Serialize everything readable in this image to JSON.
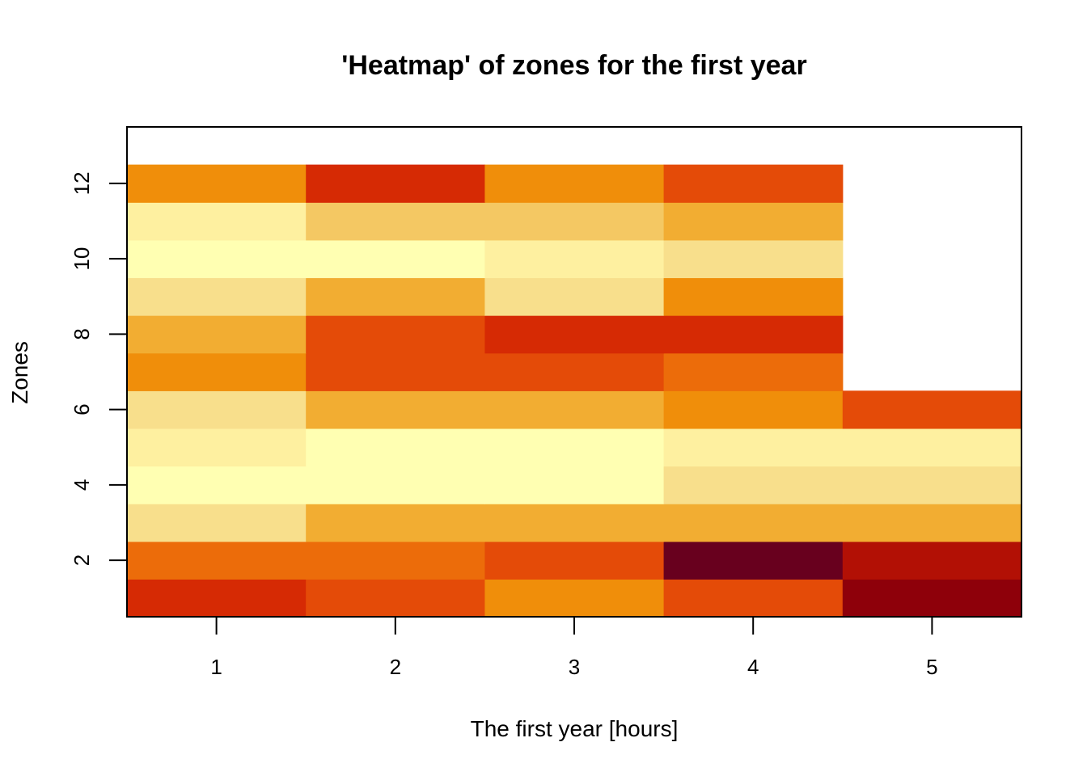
{
  "chart_data": {
    "type": "heatmap",
    "title": "'Heatmap' of zones for the first year",
    "xlabel": "The first year [hours]",
    "ylabel": "Zones",
    "x": [
      1,
      2,
      3,
      4,
      5
    ],
    "y": [
      1,
      2,
      3,
      4,
      5,
      6,
      7,
      8,
      9,
      10,
      11,
      12
    ],
    "xlim": [
      0.5,
      5.5
    ],
    "ylim": [
      0.5,
      13.5
    ],
    "x_ticks": [
      1,
      2,
      3,
      4,
      5
    ],
    "y_ticks": [
      2,
      4,
      6,
      8,
      10,
      12
    ],
    "color_scale": "heat.colors",
    "palette": [
      "#ffffff",
      "#ffffb2",
      "#fef0a0",
      "#f8df8c",
      "#f4c863",
      "#f2ad32",
      "#f08e0a",
      "#ec6c0a",
      "#e44b08",
      "#d62a04",
      "#b21005",
      "#8e000a",
      "#68001e"
    ],
    "levels": [
      [
        9,
        8,
        6,
        8,
        11
      ],
      [
        7,
        7,
        8,
        12,
        10
      ],
      [
        3,
        5,
        5,
        5,
        5
      ],
      [
        1,
        1,
        1,
        3,
        3
      ],
      [
        2,
        1,
        1,
        2,
        2
      ],
      [
        3,
        5,
        5,
        6,
        8
      ],
      [
        6,
        8,
        8,
        7,
        0
      ],
      [
        5,
        8,
        9,
        9,
        0
      ],
      [
        3,
        5,
        3,
        6,
        0
      ],
      [
        1,
        1,
        2,
        3,
        0
      ],
      [
        2,
        4,
        4,
        5,
        0
      ],
      [
        6,
        9,
        6,
        8,
        0
      ]
    ]
  }
}
